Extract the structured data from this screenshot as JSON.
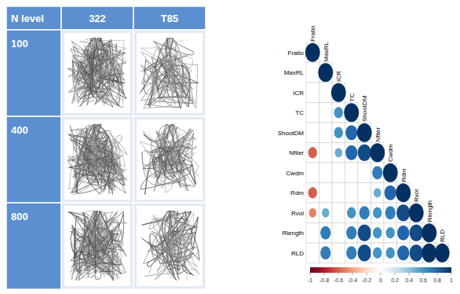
{
  "table": {
    "header": [
      "N level",
      "322",
      "T85"
    ],
    "rows": [
      "100",
      "400",
      "800"
    ]
  },
  "chart_data": {
    "type": "correlogram",
    "variables": [
      "Fratio",
      "MaxRL",
      "ICR",
      "TC",
      "ShootDM",
      "Nfiler",
      "Cwdm",
      "Rdm",
      "Rvol",
      "Rlength",
      "RLD"
    ],
    "values": [
      [
        1
      ],
      [
        null,
        1
      ],
      [
        null,
        null,
        1
      ],
      [
        null,
        null,
        0.6,
        1
      ],
      [
        null,
        null,
        0.6,
        0.8,
        1
      ],
      [
        -0.6,
        null,
        0.5,
        0.8,
        0.9,
        1
      ],
      [
        null,
        null,
        null,
        null,
        null,
        0.7,
        1
      ],
      [
        -0.6,
        null,
        null,
        null,
        null,
        0.5,
        0.8,
        1
      ],
      [
        -0.5,
        0.5,
        null,
        0.6,
        0.7,
        0.6,
        0.7,
        0.9,
        1
      ],
      [
        null,
        0.7,
        null,
        0.7,
        0.9,
        0.6,
        0.6,
        0.8,
        0.9,
        1
      ],
      [
        null,
        0.7,
        null,
        0.7,
        0.9,
        0.6,
        0.6,
        0.8,
        0.9,
        1,
        1
      ]
    ],
    "colorbar_range": [
      -1,
      1
    ],
    "colorbar_ticks": [
      -1,
      -0.8,
      -0.6,
      -0.4,
      -0.2,
      0,
      0.2,
      0.4,
      0.6,
      0.8,
      1
    ]
  }
}
